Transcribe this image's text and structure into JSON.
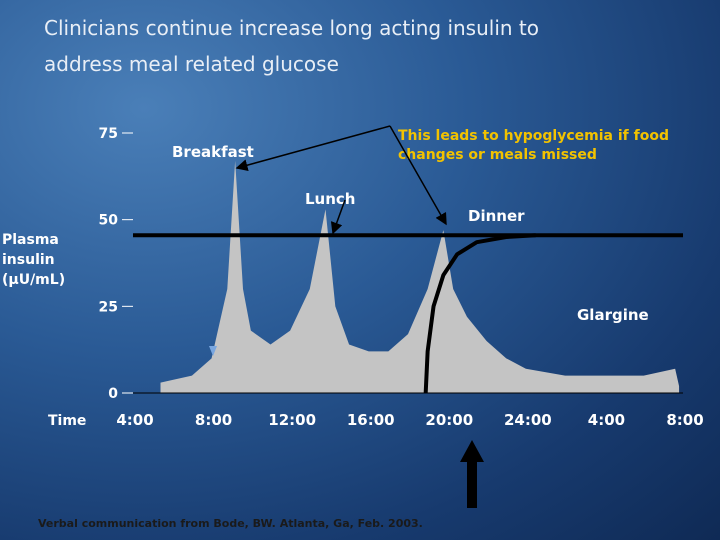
{
  "chart_data": {
    "type": "area",
    "title": "Clinicians continue increase long acting insulin to address meal related glucose",
    "y_label": "Plasma insulin (µU/mL)",
    "x_label": "Time",
    "xlim": [
      4,
      32
    ],
    "xticks": [
      {
        "value": 4,
        "label": "4:00"
      },
      {
        "value": 8,
        "label": "8:00"
      },
      {
        "value": 12,
        "label": "12:00"
      },
      {
        "value": 16,
        "label": "16:00"
      },
      {
        "value": 20,
        "label": "20:00"
      },
      {
        "value": 24,
        "label": "24:00"
      },
      {
        "value": 28,
        "label": "4:00"
      },
      {
        "value": 32,
        "label": "8:00"
      }
    ],
    "ylim": [
      0,
      75
    ],
    "yticks": [
      0,
      25,
      50,
      75
    ],
    "series": [
      {
        "type": "area",
        "color": "#c4c4c4",
        "x": [
          5.4,
          7,
          8,
          8.8,
          9.2,
          9.6,
          10,
          11,
          12,
          13,
          13.8,
          14.3,
          15,
          16,
          17,
          18,
          19,
          19.8,
          20.3,
          21,
          22,
          23,
          24,
          26,
          28,
          30,
          31.6,
          31.8
        ],
        "values": [
          3,
          5,
          10,
          30,
          67,
          30,
          18,
          14,
          18,
          30,
          53,
          25,
          14,
          12,
          12,
          17,
          30,
          47,
          30,
          22,
          15,
          10,
          7,
          5,
          5,
          5,
          7,
          2
        ]
      },
      {
        "type": "line",
        "color": "#000000",
        "x": [
          4,
          32
        ],
        "values": [
          45.5,
          45.5
        ]
      },
      {
        "type": "line",
        "name": "Glargine",
        "color": "#000000",
        "x": [
          18.9,
          19,
          19.3,
          19.8,
          20.5,
          21.5,
          23,
          24.5
        ],
        "values": [
          0,
          12,
          25,
          34,
          40,
          43.5,
          45,
          45.5
        ]
      }
    ],
    "annotations": [
      "Breakfast",
      "Lunch",
      "Dinner",
      "This leads to hypoglycemia if food changes or meals missed"
    ],
    "footnote": "Verbal communication from Bode, BW. Atlanta, Ga, Feb. 2003."
  }
}
